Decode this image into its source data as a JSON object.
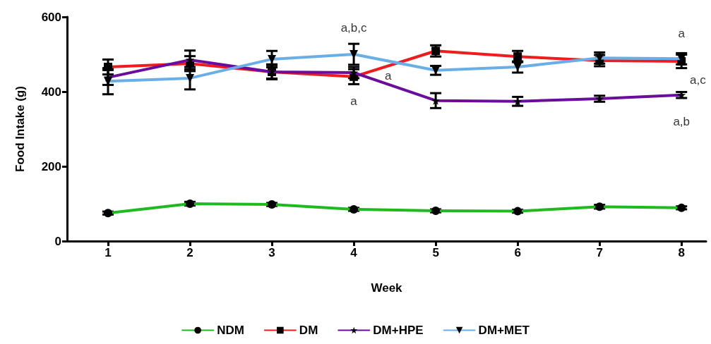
{
  "chart_data": {
    "type": "line",
    "xlabel": "Week",
    "ylabel": "Food Intake (g)",
    "x": [
      1,
      2,
      3,
      4,
      5,
      6,
      7,
      8
    ],
    "xlim": [
      0.5,
      8.3
    ],
    "xticks": [
      1,
      2,
      3,
      4,
      5,
      6,
      7,
      8
    ],
    "ylim": [
      0,
      600
    ],
    "yticks": [
      0,
      200,
      400,
      600
    ],
    "grid": false,
    "legend": "bottom",
    "line_style": "solid",
    "series": [
      {
        "name": "NDM",
        "color": "#1fba1f",
        "marker": "circle",
        "values": [
          75,
          100,
          98,
          85,
          81,
          80,
          92,
          89
        ],
        "errors": [
          4,
          5,
          4,
          4,
          4,
          4,
          5,
          4
        ]
      },
      {
        "name": "DM",
        "color": "#ee1c1c",
        "marker": "square",
        "values": [
          466,
          475,
          453,
          440,
          509,
          494,
          483,
          481
        ],
        "errors": [
          20,
          20,
          18,
          20,
          15,
          15,
          15,
          18
        ]
      },
      {
        "name": "DM+HPE",
        "color": "#6a0d9c",
        "marker": "star",
        "values": [
          438,
          485,
          453,
          451,
          376,
          374,
          381,
          391
        ],
        "errors": [
          20,
          25,
          20,
          15,
          20,
          12,
          8,
          8
        ]
      },
      {
        "name": "DM+MET",
        "color": "#6aaee8",
        "marker": "triangle",
        "values": [
          428,
          436,
          487,
          500,
          457,
          466,
          490,
          488
        ],
        "errors": [
          35,
          30,
          22,
          28,
          12,
          15,
          15,
          15
        ]
      }
    ],
    "annotations": [
      "a,b,c",
      "a",
      "a",
      "a",
      "a,c",
      "a,b"
    ]
  }
}
